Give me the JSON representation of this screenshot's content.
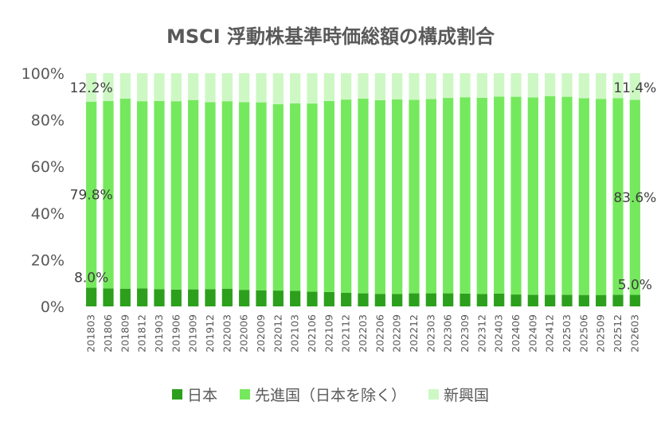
{
  "chart_data": {
    "type": "stacked-bar",
    "title": "MSCI 浮動株基準時価総額の構成割合",
    "categories": [
      "201803",
      "201806",
      "201809",
      "201812",
      "201903",
      "201906",
      "201909",
      "201912",
      "202003",
      "202006",
      "202009",
      "202012",
      "202103",
      "202106",
      "202109",
      "202112",
      "202203",
      "202206",
      "202209",
      "202212",
      "202303",
      "202306",
      "202309",
      "202312",
      "202403",
      "202406",
      "202409",
      "202412",
      "202503",
      "202506",
      "202509",
      "202512",
      "202603"
    ],
    "series": [
      {
        "name": "日本",
        "color": "#2ca01c",
        "values": [
          8.0,
          7.7,
          7.6,
          7.7,
          7.4,
          7.2,
          7.3,
          7.4,
          7.6,
          7.1,
          6.9,
          6.8,
          6.7,
          6.3,
          6.2,
          5.8,
          5.6,
          5.4,
          5.3,
          5.6,
          5.6,
          5.6,
          5.5,
          5.3,
          5.5,
          5.1,
          5.0,
          5.0,
          5.0,
          4.9,
          4.9,
          5.0,
          5.0
        ]
      },
      {
        "name": "先進国（日本を除く）",
        "color": "#75e95d",
        "values": [
          79.8,
          80.4,
          81.5,
          80.3,
          80.7,
          80.8,
          81.2,
          80.2,
          80.4,
          80.5,
          80.6,
          79.9,
          80.4,
          80.7,
          81.9,
          82.9,
          83.5,
          83.0,
          83.5,
          83.0,
          83.3,
          83.8,
          84.2,
          84.2,
          84.5,
          84.8,
          84.6,
          85.2,
          84.9,
          84.4,
          84.1,
          84.3,
          83.6
        ]
      },
      {
        "name": "新興国",
        "color": "#cdf8c4",
        "values": [
          12.2,
          11.9,
          10.9,
          12.0,
          11.9,
          12.0,
          11.5,
          12.4,
          12.0,
          12.4,
          12.5,
          13.3,
          12.9,
          13.0,
          11.9,
          11.3,
          10.9,
          11.6,
          11.2,
          11.4,
          11.1,
          10.6,
          10.3,
          10.5,
          10.0,
          10.1,
          10.4,
          9.8,
          10.1,
          10.7,
          11.0,
          10.7,
          11.4
        ]
      }
    ],
    "y_ticks": [
      "0%",
      "20%",
      "40%",
      "60%",
      "80%",
      "100%"
    ],
    "ylim": [
      0,
      100
    ],
    "data_labels": {
      "first": {
        "japan": "8.0%",
        "developed": "79.8%",
        "emerging": "12.2%"
      },
      "last": {
        "japan": "5.0%",
        "developed": "83.6%",
        "emerging": "11.4%"
      }
    },
    "legend_position": "bottom"
  }
}
